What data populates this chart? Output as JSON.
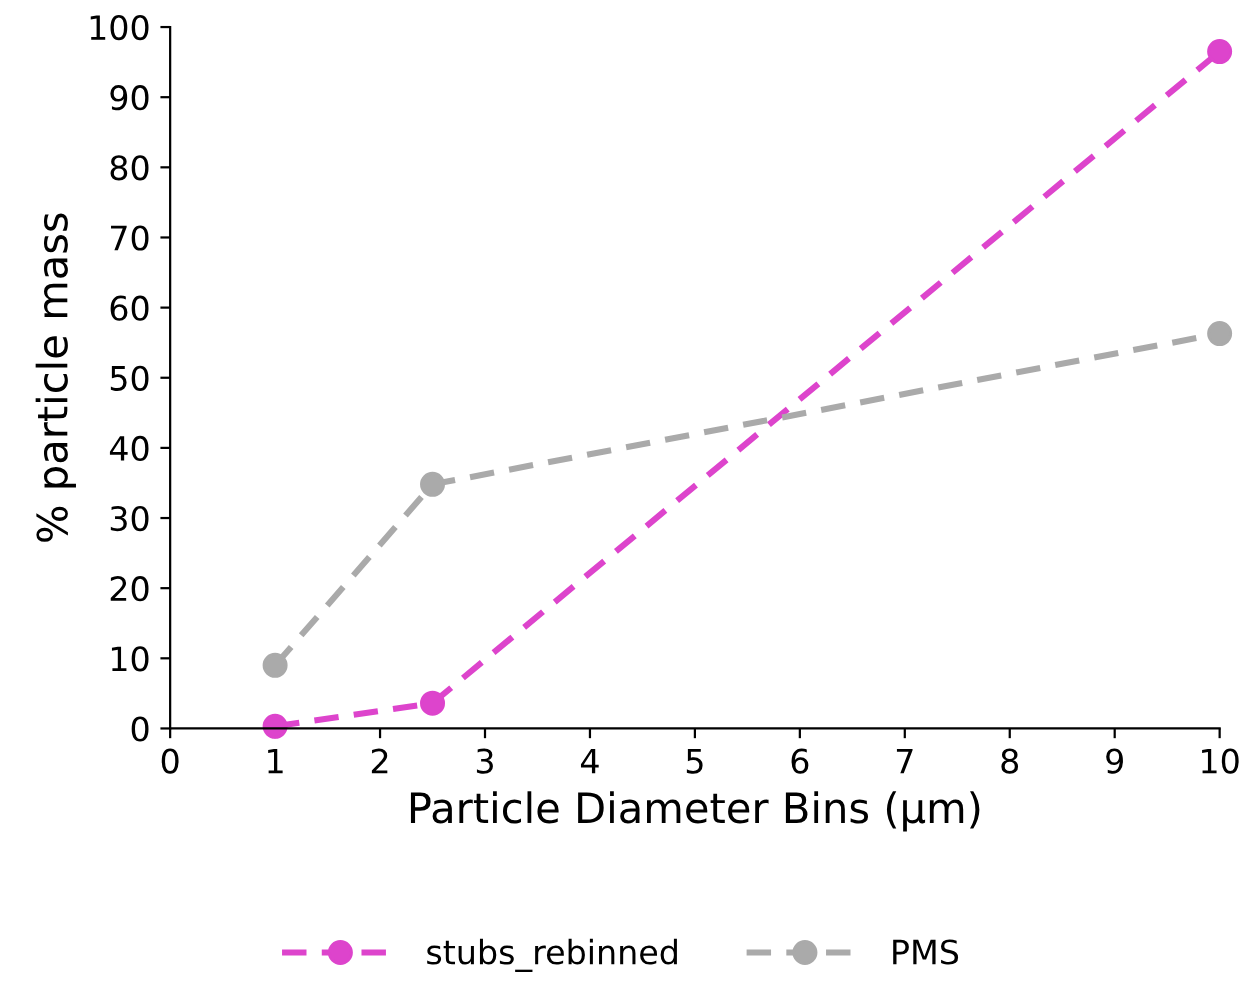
{
  "chart_data": {
    "type": "line",
    "xlabel": "Particle Diameter Bins (µm)",
    "ylabel": "% particle mass",
    "x": [
      1,
      2.5,
      10
    ],
    "series": [
      {
        "name": "stubs_rebinned",
        "color": "#dd44cc",
        "values": [
          0.3,
          3.6,
          96.5
        ]
      },
      {
        "name": "PMS",
        "color": "#aaaaaa",
        "values": [
          9,
          34.8,
          56.3
        ]
      }
    ],
    "xlim": [
      0,
      10
    ],
    "xticks": [
      0,
      1,
      2,
      3,
      4,
      5,
      6,
      7,
      8,
      9,
      10
    ],
    "ylim": [
      0,
      100
    ],
    "yticks": [
      0,
      10,
      20,
      30,
      40,
      50,
      60,
      70,
      80,
      90,
      100
    ],
    "grid": false,
    "legend": "bottom",
    "marker": "circle",
    "line_style": "dashed"
  }
}
